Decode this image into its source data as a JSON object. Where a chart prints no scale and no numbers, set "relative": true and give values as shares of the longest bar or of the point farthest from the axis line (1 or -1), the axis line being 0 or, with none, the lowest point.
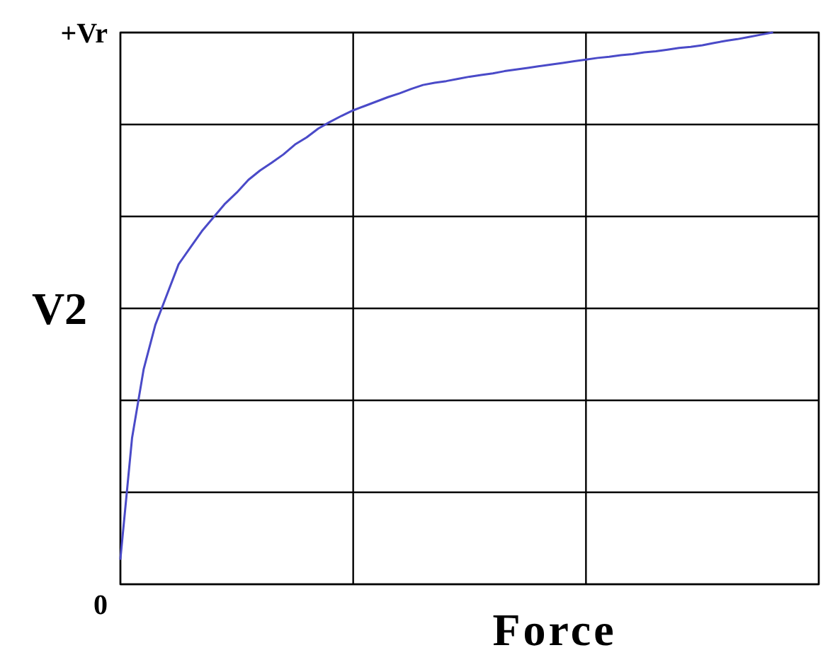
{
  "chart_data": {
    "type": "line",
    "xlabel": "Force",
    "ylabel": "V2",
    "categories": [
      null,
      null,
      null,
      null,
      null,
      null,
      null,
      null,
      null,
      null,
      null,
      null,
      null,
      null,
      null,
      null,
      null,
      null,
      null,
      null,
      null,
      null,
      null,
      null,
      null,
      null,
      null,
      null,
      null,
      null,
      null,
      null,
      null,
      null,
      null,
      null,
      null,
      null,
      null,
      null,
      null,
      null,
      null,
      null,
      null,
      null,
      null,
      null,
      null,
      null,
      null,
      null,
      null,
      null,
      null,
      null,
      null,
      null,
      null,
      null,
      null
    ],
    "series": [
      {
        "color": "#4a4ac8",
        "values": [
          0.046,
          0.265,
          0.39,
          0.47,
          0.525,
          0.58,
          0.61,
          0.64,
          0.665,
          0.69,
          0.71,
          0.733,
          0.75,
          0.764,
          0.779,
          0.797,
          0.81,
          0.826,
          0.838,
          0.849,
          0.859,
          0.867,
          0.875,
          0.883,
          0.89,
          0.898,
          0.905,
          0.909,
          0.912,
          0.916,
          0.92,
          0.923,
          0.926,
          0.93,
          0.933,
          0.936,
          0.939,
          0.942,
          0.945,
          0.948,
          0.951,
          0.954,
          0.956,
          0.959,
          0.961,
          0.964,
          0.966,
          0.969,
          0.972,
          0.974,
          0.977,
          0.981,
          0.985,
          0.988,
          0.992,
          0.996,
          1.0,
          null,
          null,
          null,
          null
        ]
      }
    ],
    "relative": true,
    "annotations": [
      "0",
      "+Vr"
    ],
    "grid": true,
    "marker": "none",
    "line_style": "solid"
  }
}
